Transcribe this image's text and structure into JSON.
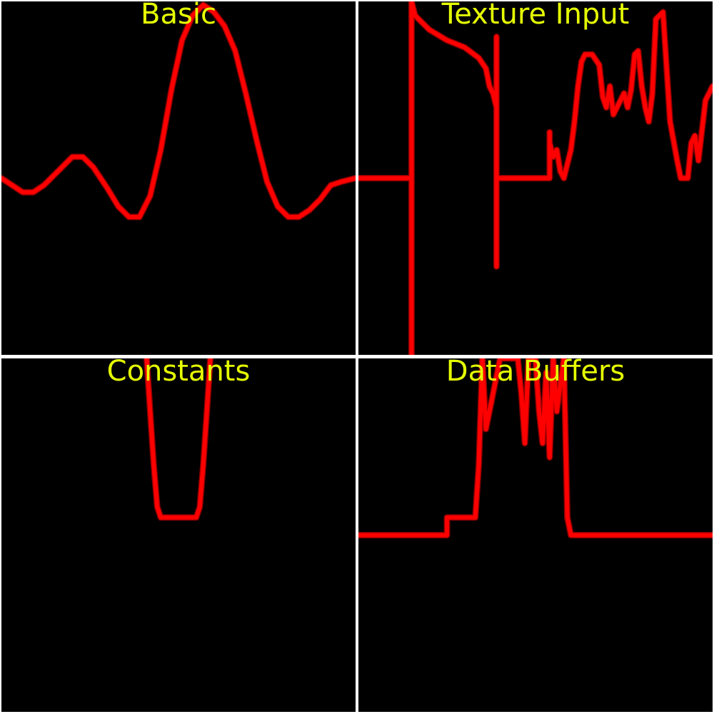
{
  "colors": {
    "background": "#000000",
    "border": "#ffffff",
    "curve": "#ff0000",
    "title": "#e6ff00"
  },
  "chart_data": [
    {
      "type": "line",
      "title": "Basic",
      "xlim": [
        0,
        1
      ],
      "ylim": [
        0,
        1
      ],
      "series": [
        {
          "x": [
            0.0,
            0.03,
            0.06,
            0.09,
            0.12,
            0.16,
            0.2,
            0.23,
            0.26,
            0.3,
            0.33,
            0.36,
            0.39,
            0.42,
            0.45,
            0.48,
            0.51,
            0.54,
            0.57,
            0.6,
            0.63,
            0.66,
            0.69,
            0.72,
            0.75,
            0.78,
            0.81,
            0.84,
            0.87,
            0.9,
            0.93,
            0.96,
            1.0
          ],
          "values": [
            0.5,
            0.48,
            0.46,
            0.46,
            0.48,
            0.52,
            0.56,
            0.56,
            0.53,
            0.47,
            0.42,
            0.39,
            0.39,
            0.45,
            0.58,
            0.75,
            0.89,
            0.96,
            0.99,
            0.97,
            0.93,
            0.86,
            0.74,
            0.61,
            0.49,
            0.42,
            0.39,
            0.39,
            0.41,
            0.44,
            0.48,
            0.49,
            0.5
          ]
        }
      ]
    },
    {
      "type": "line",
      "title": "Texture Input",
      "xlim": [
        0,
        1
      ],
      "ylim": [
        0,
        1
      ],
      "series": [
        {
          "x": [
            0.0,
            0.15,
            0.15,
            0.15,
            0.16,
            0.2,
            0.25,
            0.3,
            0.34,
            0.36,
            0.37,
            0.38,
            0.39,
            0.39,
            0.39,
            0.39,
            0.44,
            0.54,
            0.54,
            0.54,
            0.55,
            0.56,
            0.57,
            0.58,
            0.6,
            0.61,
            0.62,
            0.63,
            0.64,
            0.66,
            0.68,
            0.69,
            0.7,
            0.71,
            0.72,
            0.74,
            0.75,
            0.76,
            0.77,
            0.78,
            0.79,
            0.8,
            0.81,
            0.82,
            0.83,
            0.84,
            0.86,
            0.88,
            0.9,
            0.91,
            0.92,
            0.93,
            0.94,
            0.95,
            0.96,
            0.98,
            1.0
          ],
          "values": [
            0.5,
            0.5,
            0.0,
            1.0,
            0.96,
            0.92,
            0.89,
            0.87,
            0.84,
            0.81,
            0.76,
            0.74,
            0.7,
            0.25,
            0.9,
            0.5,
            0.5,
            0.5,
            0.63,
            0.6,
            0.56,
            0.58,
            0.52,
            0.5,
            0.58,
            0.66,
            0.76,
            0.83,
            0.85,
            0.85,
            0.82,
            0.73,
            0.7,
            0.76,
            0.68,
            0.72,
            0.74,
            0.7,
            0.75,
            0.85,
            0.86,
            0.76,
            0.7,
            0.66,
            0.74,
            0.95,
            0.97,
            0.66,
            0.55,
            0.5,
            0.5,
            0.5,
            0.6,
            0.62,
            0.55,
            0.72,
            0.76
          ]
        }
      ]
    },
    {
      "type": "line",
      "title": "Constants",
      "xlim": [
        0,
        1
      ],
      "ylim": [
        0,
        1
      ],
      "series": [
        {
          "x": [
            0.41,
            0.42,
            0.43,
            0.44,
            0.45,
            0.47,
            0.5,
            0.53,
            0.55,
            0.56,
            0.57,
            0.58,
            0.59
          ],
          "values": [
            1.0,
            0.85,
            0.7,
            0.58,
            0.55,
            0.55,
            0.55,
            0.55,
            0.55,
            0.58,
            0.7,
            0.85,
            1.0
          ]
        }
      ]
    },
    {
      "type": "line",
      "title": "Data Buffers",
      "xlim": [
        0,
        1
      ],
      "ylim": [
        0,
        1
      ],
      "series": [
        {
          "x": [
            0.0,
            0.24,
            0.25,
            0.25,
            0.31,
            0.33,
            0.34,
            0.35,
            0.36,
            0.4,
            0.45,
            0.46,
            0.47,
            0.48,
            0.5,
            0.51,
            0.52,
            0.53,
            0.54,
            0.55,
            0.56,
            0.58,
            0.59,
            0.6,
            0.8,
            1.0
          ],
          "values": [
            0.5,
            0.5,
            0.5,
            0.55,
            0.55,
            0.55,
            0.7,
            1.0,
            0.8,
            1.0,
            1.0,
            0.9,
            0.76,
            1.0,
            1.0,
            0.85,
            0.76,
            0.96,
            0.72,
            1.0,
            0.85,
            1.0,
            0.55,
            0.5,
            0.5,
            0.5
          ]
        }
      ]
    }
  ]
}
